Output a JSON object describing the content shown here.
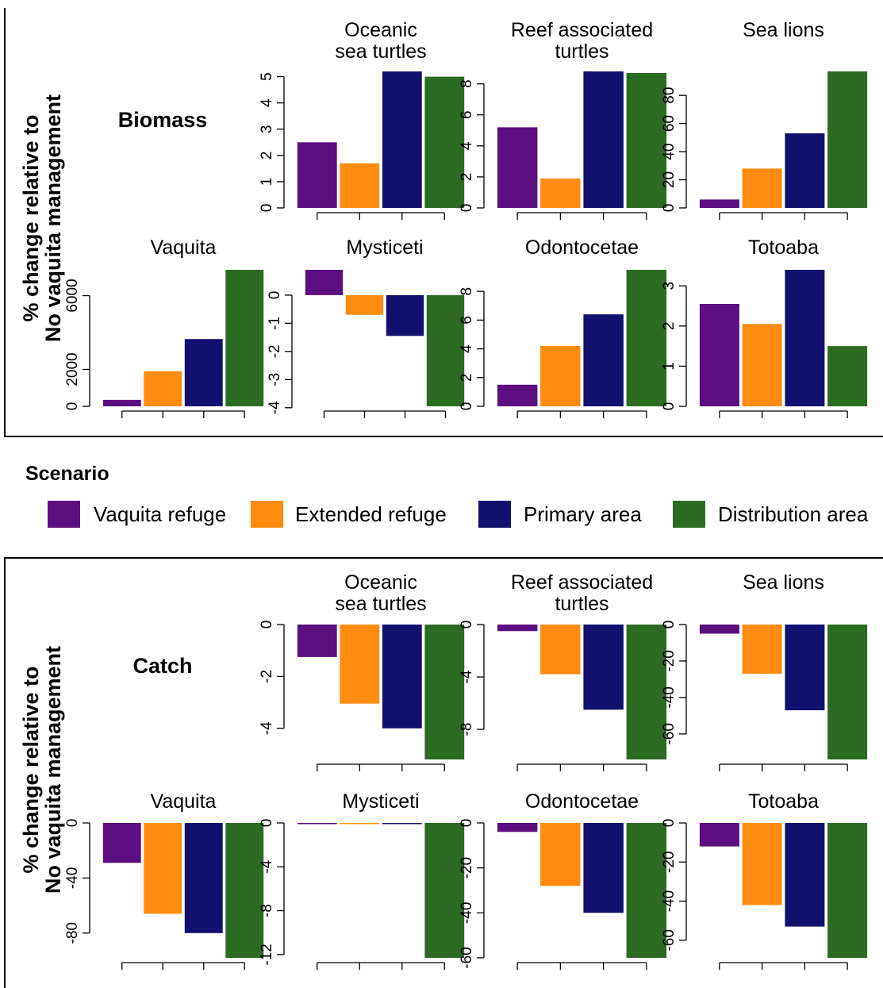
{
  "legend": {
    "title": "Scenario",
    "items": [
      {
        "label": "Vaquita refuge",
        "color": "#5B0F80"
      },
      {
        "label": "Extended refuge",
        "color": "#FF8C0F"
      },
      {
        "label": "Primary area",
        "color": "#12106E"
      },
      {
        "label": "Distribution area",
        "color": "#2B6B22"
      }
    ]
  },
  "sections": [
    {
      "title": "Biomass",
      "ylabel_line1": "% change relative to",
      "ylabel_line2": "No vaquita management"
    },
    {
      "title": "Catch",
      "ylabel_line1": "% change relative to",
      "ylabel_line2": "No vaquita management"
    }
  ],
  "chart_data": [
    {
      "type": "bar",
      "section": "Biomass",
      "title_lines": [
        "Oceanic",
        "sea turtles"
      ],
      "categories": [
        "Vaquita refuge",
        "Extended refuge",
        "Primary area",
        "Distribution area"
      ],
      "values": [
        2.5,
        1.7,
        5.2,
        5.0
      ],
      "ylim": [
        0,
        5.2
      ],
      "yticks": [
        0,
        1,
        2,
        3,
        4,
        5
      ],
      "xlabel": "",
      "ylabel": ""
    },
    {
      "type": "bar",
      "section": "Biomass",
      "title_lines": [
        "Reef associated",
        "turtles"
      ],
      "categories": [
        "Vaquita refuge",
        "Extended refuge",
        "Primary area",
        "Distribution area"
      ],
      "values": [
        5.2,
        1.9,
        8.8,
        8.7
      ],
      "ylim": [
        0,
        8.8
      ],
      "yticks": [
        0,
        2,
        4,
        6,
        8
      ],
      "xlabel": "",
      "ylabel": ""
    },
    {
      "type": "bar",
      "section": "Biomass",
      "title_lines": [
        "Sea lions"
      ],
      "categories": [
        "Vaquita refuge",
        "Extended refuge",
        "Primary area",
        "Distribution area"
      ],
      "values": [
        6,
        28,
        53,
        97
      ],
      "ylim": [
        0,
        97
      ],
      "yticks": [
        0,
        20,
        40,
        60,
        80
      ],
      "xlabel": "",
      "ylabel": ""
    },
    {
      "type": "bar",
      "section": "Biomass",
      "title_lines": [
        "Vaquita"
      ],
      "categories": [
        "Vaquita refuge",
        "Extended refuge",
        "Primary area",
        "Distribution area"
      ],
      "values": [
        350,
        1900,
        3650,
        7400
      ],
      "ylim": [
        0,
        7400
      ],
      "yticks": [
        0,
        2000,
        6000
      ],
      "xlabel": "",
      "ylabel": ""
    },
    {
      "type": "bar",
      "section": "Biomass",
      "title_lines": [
        "Mysticeti"
      ],
      "categories": [
        "Vaquita refuge",
        "Extended refuge",
        "Primary area",
        "Distribution area"
      ],
      "values": [
        0.9,
        -0.7,
        -1.45,
        -3.95
      ],
      "ylim": [
        -3.95,
        0.9
      ],
      "yticks": [
        -4,
        -3,
        -2,
        -1,
        0
      ],
      "xlabel": "",
      "ylabel": ""
    },
    {
      "type": "bar",
      "section": "Biomass",
      "title_lines": [
        "Odontocetae"
      ],
      "categories": [
        "Vaquita refuge",
        "Extended refuge",
        "Primary area",
        "Distribution area"
      ],
      "values": [
        1.5,
        4.2,
        6.4,
        9.5
      ],
      "ylim": [
        0,
        9.5
      ],
      "yticks": [
        0,
        2,
        4,
        6,
        8
      ],
      "xlabel": "",
      "ylabel": ""
    },
    {
      "type": "bar",
      "section": "Biomass",
      "title_lines": [
        "Totoaba"
      ],
      "categories": [
        "Vaquita refuge",
        "Extended refuge",
        "Primary area",
        "Distribution area"
      ],
      "values": [
        2.55,
        2.05,
        3.4,
        1.5
      ],
      "ylim": [
        0,
        3.4
      ],
      "yticks": [
        0,
        1,
        2,
        3
      ],
      "xlabel": "",
      "ylabel": ""
    },
    {
      "type": "bar",
      "section": "Catch",
      "title_lines": [
        "Oceanic",
        "sea turtles"
      ],
      "categories": [
        "Vaquita refuge",
        "Extended refuge",
        "Primary area",
        "Distribution area"
      ],
      "values": [
        -1.25,
        -3.05,
        -4.0,
        -5.2
      ],
      "ylim": [
        -5.2,
        0
      ],
      "yticks": [
        0,
        -2,
        -4
      ],
      "xlabel": "",
      "ylabel": ""
    },
    {
      "type": "bar",
      "section": "Catch",
      "title_lines": [
        "Reef associated",
        "turtles"
      ],
      "categories": [
        "Vaquita refuge",
        "Extended refuge",
        "Primary area",
        "Distribution area"
      ],
      "values": [
        -0.5,
        -3.8,
        -6.5,
        -10.3
      ],
      "ylim": [
        -10.3,
        0
      ],
      "yticks": [
        0,
        -4,
        -8
      ],
      "xlabel": "",
      "ylabel": ""
    },
    {
      "type": "bar",
      "section": "Catch",
      "title_lines": [
        "Sea lions"
      ],
      "categories": [
        "Vaquita refuge",
        "Extended refuge",
        "Primary area",
        "Distribution area"
      ],
      "values": [
        -5,
        -27,
        -47,
        -74
      ],
      "ylim": [
        -74,
        0
      ],
      "yticks": [
        0,
        -20,
        -40,
        -60
      ],
      "xlabel": "",
      "ylabel": ""
    },
    {
      "type": "bar",
      "section": "Catch",
      "title_lines": [
        "Vaquita"
      ],
      "categories": [
        "Vaquita refuge",
        "Extended refuge",
        "Primary area",
        "Distribution area"
      ],
      "values": [
        -29,
        -66,
        -80,
        -98
      ],
      "ylim": [
        -98,
        0
      ],
      "yticks": [
        0,
        -40,
        -80
      ],
      "xlabel": "",
      "ylabel": ""
    },
    {
      "type": "bar",
      "section": "Catch",
      "title_lines": [
        "Mysticeti"
      ],
      "categories": [
        "Vaquita refuge",
        "Extended refuge",
        "Primary area",
        "Distribution area"
      ],
      "values": [
        -0.05,
        -0.05,
        -0.05,
        -12.3
      ],
      "ylim": [
        -12.3,
        0
      ],
      "yticks": [
        0,
        -4,
        -8,
        -12
      ],
      "xlabel": "",
      "ylabel": ""
    },
    {
      "type": "bar",
      "section": "Catch",
      "title_lines": [
        "Odontocetae"
      ],
      "categories": [
        "Vaquita refuge",
        "Extended refuge",
        "Primary area",
        "Distribution area"
      ],
      "values": [
        -4,
        -28,
        -40,
        -60
      ],
      "ylim": [
        -60,
        0
      ],
      "yticks": [
        0,
        -20,
        -40,
        -60
      ],
      "xlabel": "",
      "ylabel": ""
    },
    {
      "type": "bar",
      "section": "Catch",
      "title_lines": [
        "Totoaba"
      ],
      "categories": [
        "Vaquita refuge",
        "Extended refuge",
        "Primary area",
        "Distribution area"
      ],
      "values": [
        -12,
        -42,
        -53,
        -69
      ],
      "ylim": [
        -69,
        0
      ],
      "yticks": [
        0,
        -20,
        -40,
        -60
      ],
      "xlabel": "",
      "ylabel": ""
    }
  ]
}
